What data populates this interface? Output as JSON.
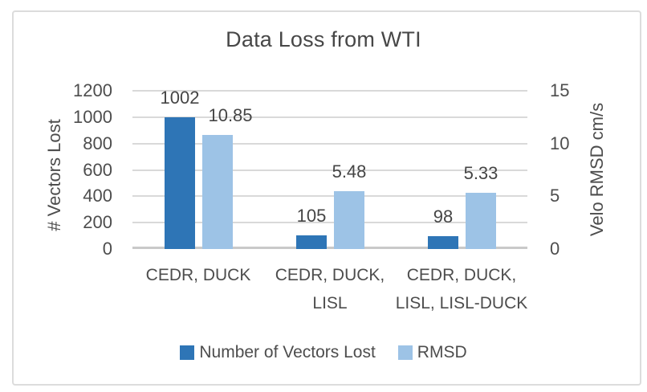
{
  "chart_data": {
    "type": "bar",
    "title": "Data Loss from WTI",
    "categories": [
      "CEDR, DUCK",
      "CEDR, DUCK,\nLISL",
      "CEDR, DUCK,\nLISL, LISL-DUCK"
    ],
    "series": [
      {
        "name": "Number of Vectors Lost",
        "axis": "left",
        "color": "#2E75B6",
        "values": [
          1002,
          105,
          98
        ],
        "data_labels": [
          "1002",
          "105",
          "98"
        ]
      },
      {
        "name": "RMSD",
        "axis": "right",
        "color": "#9DC3E6",
        "values": [
          10.85,
          5.48,
          5.33
        ],
        "data_labels": [
          "10.85",
          "5.48",
          "5.33"
        ]
      }
    ],
    "ylabel_left": "# Vectors Lost",
    "ylabel_right": "Velo RMSD cm/s",
    "left_ylim": [
      0,
      1200
    ],
    "right_ylim": [
      0,
      15
    ],
    "left_ticks": [
      "1200",
      "1000",
      "800",
      "600",
      "400",
      "200",
      "0"
    ],
    "right_ticks": [
      "15",
      "10",
      "5",
      "0"
    ],
    "grid": true,
    "legend_position": "bottom"
  },
  "colors": {
    "bar_dark": "#2E75B6",
    "bar_light": "#9DC3E6",
    "gridline": "#D9D9D9",
    "axis_line": "#C9C9C9",
    "text": "#4D4D4D",
    "figure_border": "#DCDCDC",
    "background": "#FFFFFF"
  }
}
